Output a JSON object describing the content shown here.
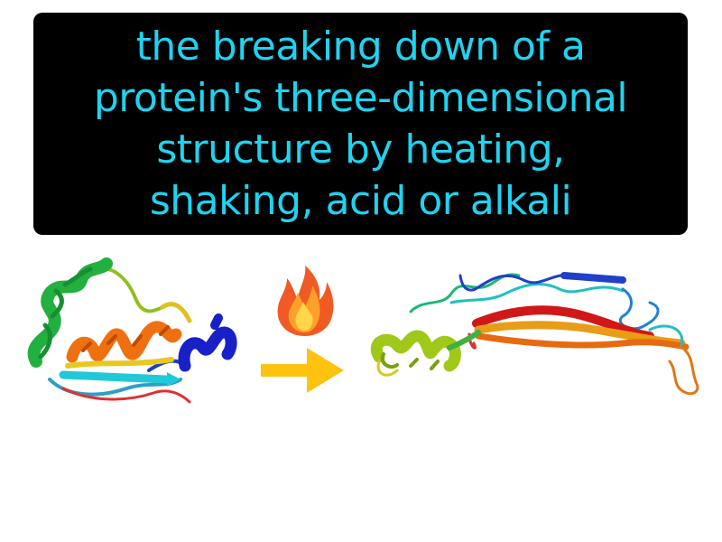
{
  "definition": {
    "lines": [
      "the breaking down of a",
      "protein's three-dimensional",
      "structure by heating,",
      "shaking, acid or alkali"
    ]
  },
  "colors": {
    "background": "#ffffff",
    "box": "#000000",
    "text": "#1fd3f0",
    "arrow": "#ffc20e",
    "flame_outer": "#f05a24",
    "flame_inner": "#ffd54a"
  },
  "icons": [
    "folded-protein-icon",
    "flame-icon",
    "right-arrow-icon",
    "denatured-protein-icon"
  ]
}
